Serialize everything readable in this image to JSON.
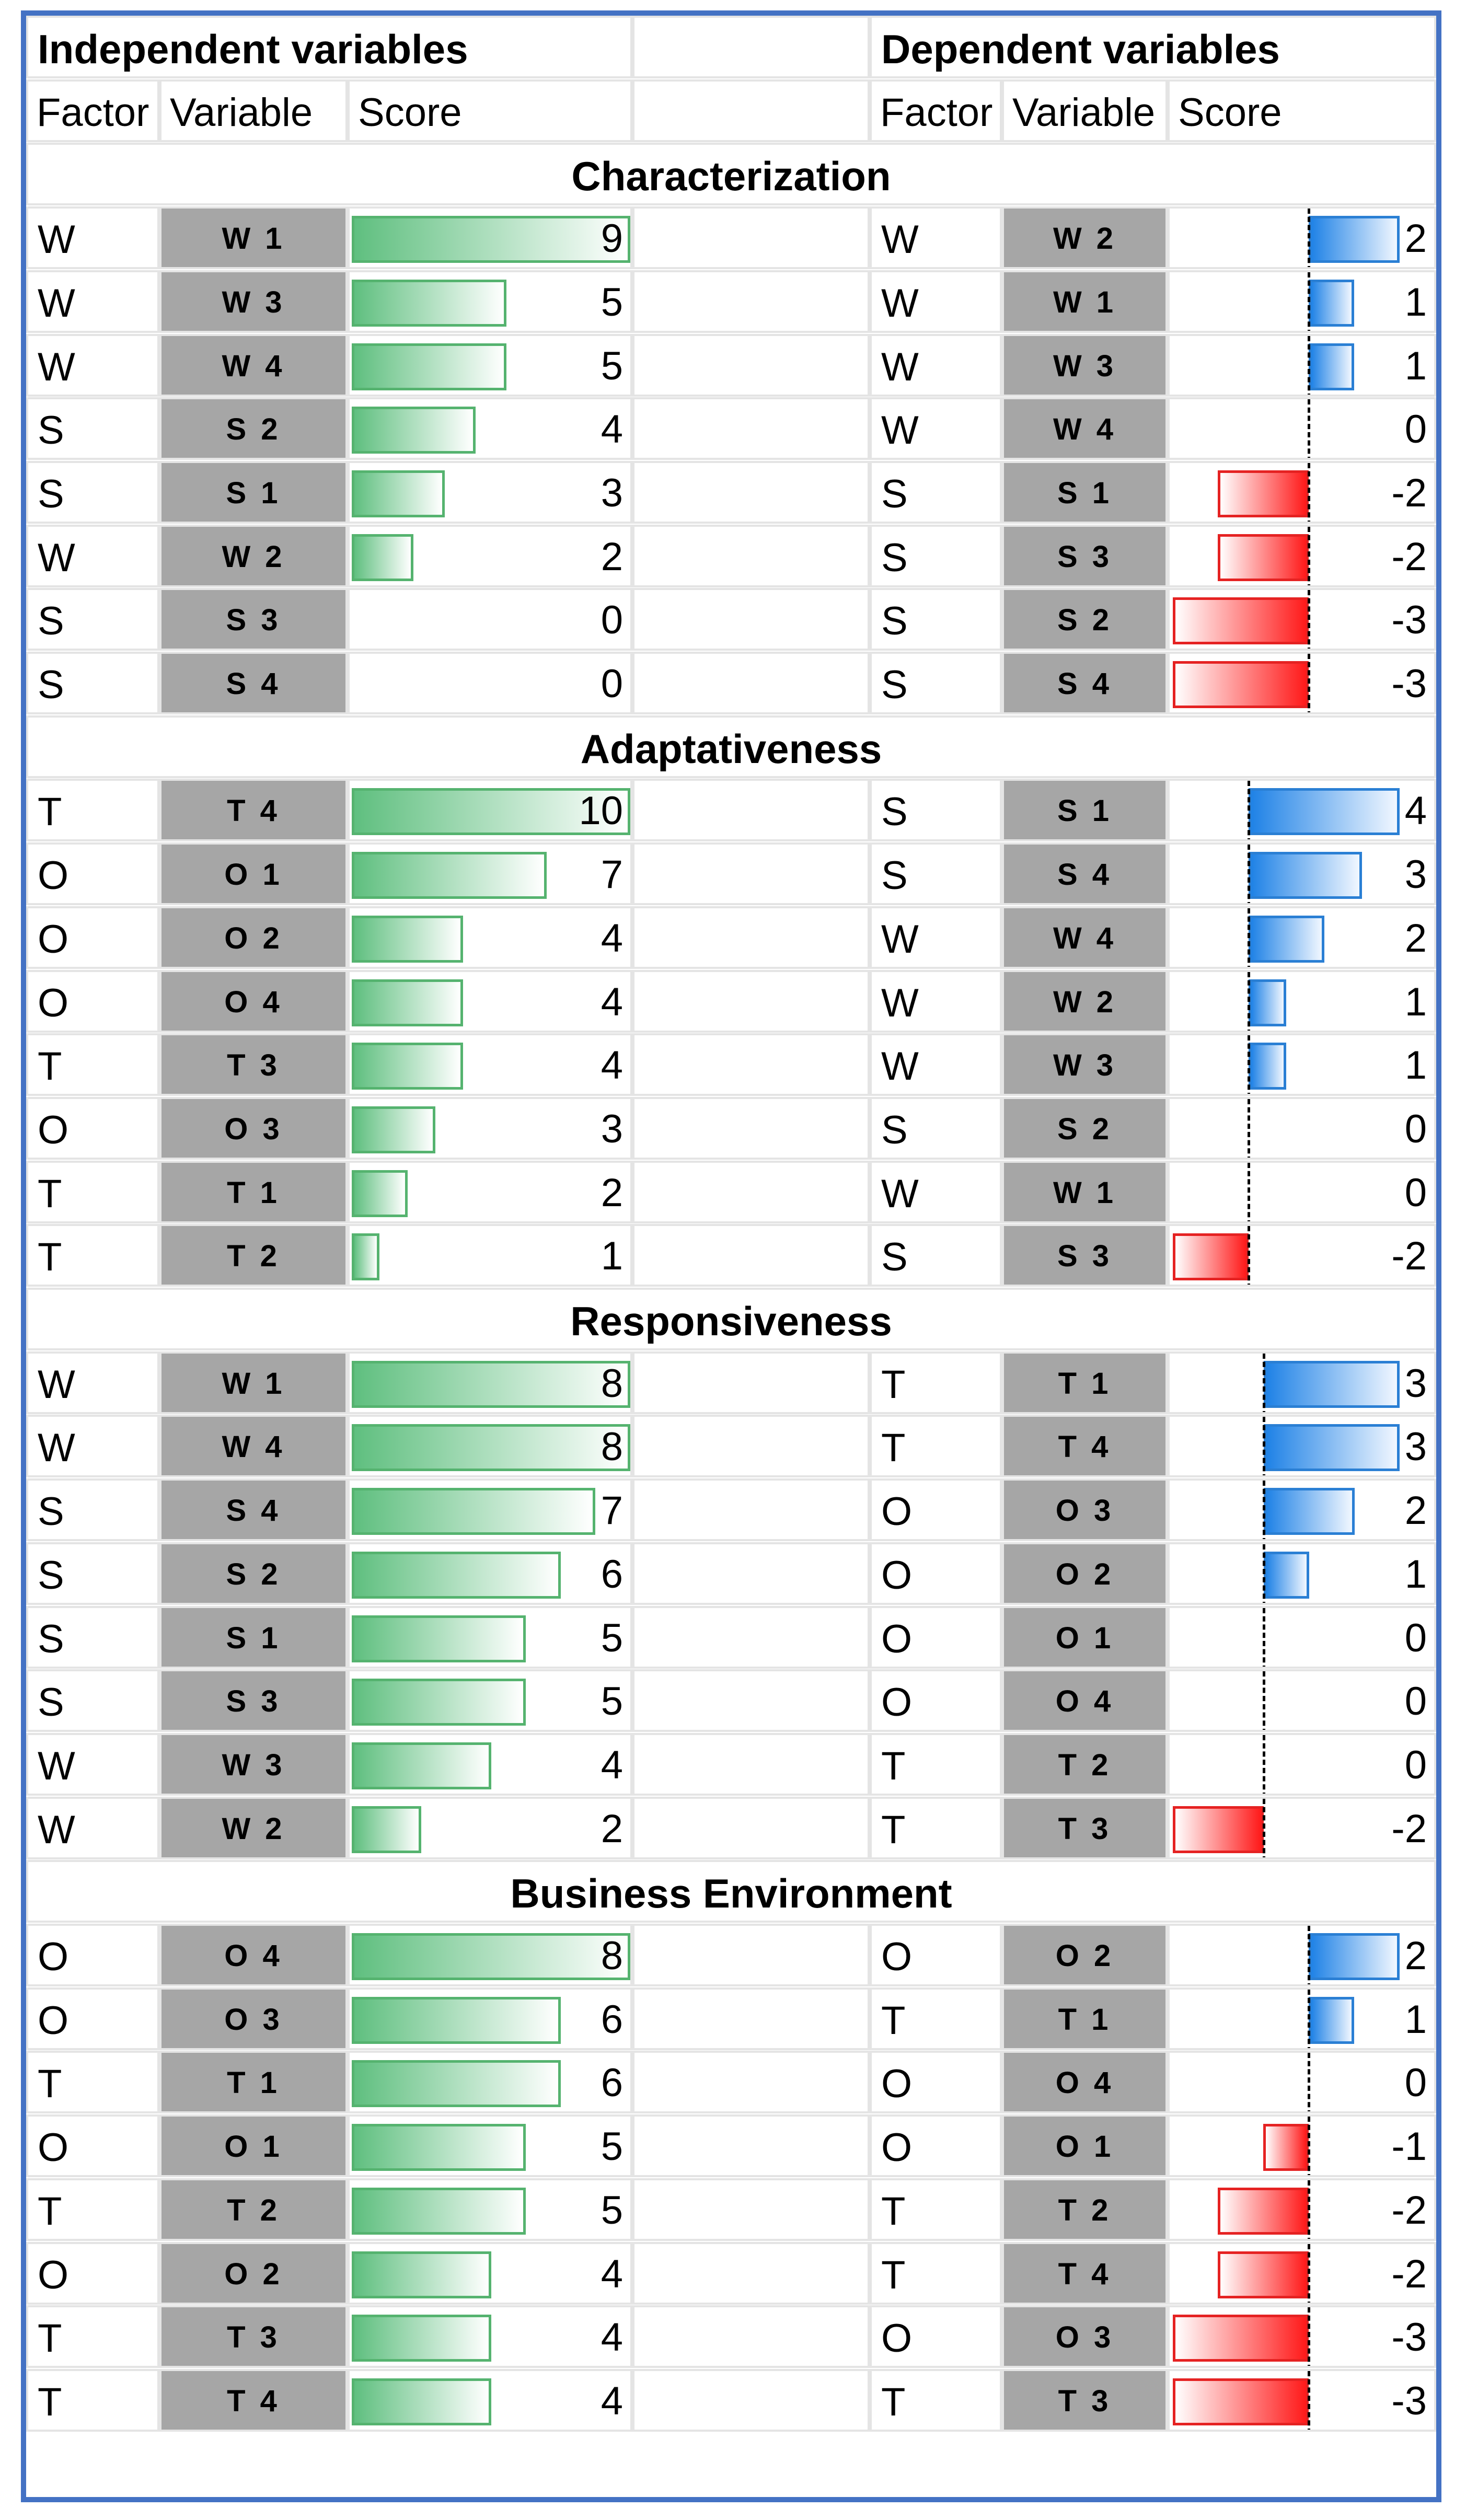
{
  "chart_data": {
    "type": "table",
    "headers": {
      "independent": "Independent variables",
      "dependent": "Dependent variables",
      "factor": "Factor",
      "variable": "Variable",
      "score": "Score"
    },
    "sections": [
      {
        "title": "Characterization",
        "independent": [
          {
            "factor": "W",
            "variable": "W 1",
            "score": 9
          },
          {
            "factor": "W",
            "variable": "W 3",
            "score": 5
          },
          {
            "factor": "W",
            "variable": "W 4",
            "score": 5
          },
          {
            "factor": "S",
            "variable": "S 2",
            "score": 4
          },
          {
            "factor": "S",
            "variable": "S 1",
            "score": 3
          },
          {
            "factor": "W",
            "variable": "W 2",
            "score": 2
          },
          {
            "factor": "S",
            "variable": "S 3",
            "score": 0
          },
          {
            "factor": "S",
            "variable": "S 4",
            "score": 0
          }
        ],
        "dependent": [
          {
            "factor": "W",
            "variable": "W 2",
            "score": 2
          },
          {
            "factor": "W",
            "variable": "W 1",
            "score": 1
          },
          {
            "factor": "W",
            "variable": "W 3",
            "score": 1
          },
          {
            "factor": "W",
            "variable": "W 4",
            "score": 0
          },
          {
            "factor": "S",
            "variable": "S 1",
            "score": -2
          },
          {
            "factor": "S",
            "variable": "S 3",
            "score": -2
          },
          {
            "factor": "S",
            "variable": "S 2",
            "score": -3
          },
          {
            "factor": "S",
            "variable": "S 4",
            "score": -3
          }
        ]
      },
      {
        "title": "Adaptativeness",
        "independent": [
          {
            "factor": "T",
            "variable": "T 4",
            "score": 10
          },
          {
            "factor": "O",
            "variable": "O 1",
            "score": 7
          },
          {
            "factor": "O",
            "variable": "O 2",
            "score": 4
          },
          {
            "factor": "O",
            "variable": "O 4",
            "score": 4
          },
          {
            "factor": "T",
            "variable": "T 3",
            "score": 4
          },
          {
            "factor": "O",
            "variable": "O 3",
            "score": 3
          },
          {
            "factor": "T",
            "variable": "T 1",
            "score": 2
          },
          {
            "factor": "T",
            "variable": "T 2",
            "score": 1
          }
        ],
        "dependent": [
          {
            "factor": "S",
            "variable": "S 1",
            "score": 4
          },
          {
            "factor": "S",
            "variable": "S 4",
            "score": 3
          },
          {
            "factor": "W",
            "variable": "W 4",
            "score": 2
          },
          {
            "factor": "W",
            "variable": "W 2",
            "score": 1
          },
          {
            "factor": "W",
            "variable": "W 3",
            "score": 1
          },
          {
            "factor": "S",
            "variable": "S 2",
            "score": 0
          },
          {
            "factor": "W",
            "variable": "W 1",
            "score": 0
          },
          {
            "factor": "S",
            "variable": "S 3",
            "score": -2
          }
        ]
      },
      {
        "title": "Responsiveness",
        "independent": [
          {
            "factor": "W",
            "variable": "W 1",
            "score": 8
          },
          {
            "factor": "W",
            "variable": "W 4",
            "score": 8
          },
          {
            "factor": "S",
            "variable": "S 4",
            "score": 7
          },
          {
            "factor": "S",
            "variable": "S 2",
            "score": 6
          },
          {
            "factor": "S",
            "variable": "S 1",
            "score": 5
          },
          {
            "factor": "S",
            "variable": "S 3",
            "score": 5
          },
          {
            "factor": "W",
            "variable": "W 3",
            "score": 4
          },
          {
            "factor": "W",
            "variable": "W 2",
            "score": 2
          }
        ],
        "dependent": [
          {
            "factor": "T",
            "variable": "T 1",
            "score": 3
          },
          {
            "factor": "T",
            "variable": "T 4",
            "score": 3
          },
          {
            "factor": "O",
            "variable": "O 3",
            "score": 2
          },
          {
            "factor": "O",
            "variable": "O 2",
            "score": 1
          },
          {
            "factor": "O",
            "variable": "O 1",
            "score": 0
          },
          {
            "factor": "O",
            "variable": "O 4",
            "score": 0
          },
          {
            "factor": "T",
            "variable": "T 2",
            "score": 0
          },
          {
            "factor": "T",
            "variable": "T 3",
            "score": -2
          }
        ]
      },
      {
        "title": "Business Environment",
        "independent": [
          {
            "factor": "O",
            "variable": "O 4",
            "score": 8
          },
          {
            "factor": "O",
            "variable": "O 3",
            "score": 6
          },
          {
            "factor": "T",
            "variable": "T 1",
            "score": 6
          },
          {
            "factor": "O",
            "variable": "O 1",
            "score": 5
          },
          {
            "factor": "T",
            "variable": "T 2",
            "score": 5
          },
          {
            "factor": "O",
            "variable": "O 2",
            "score": 4
          },
          {
            "factor": "T",
            "variable": "T 3",
            "score": 4
          },
          {
            "factor": "T",
            "variable": "T 4",
            "score": 4
          }
        ],
        "dependent": [
          {
            "factor": "O",
            "variable": "O 2",
            "score": 2
          },
          {
            "factor": "T",
            "variable": "T 1",
            "score": 1
          },
          {
            "factor": "O",
            "variable": "O 4",
            "score": 0
          },
          {
            "factor": "O",
            "variable": "O 1",
            "score": -1
          },
          {
            "factor": "T",
            "variable": "T 2",
            "score": -2
          },
          {
            "factor": "T",
            "variable": "T 4",
            "score": -2
          },
          {
            "factor": "O",
            "variable": "O 3",
            "score": -3
          },
          {
            "factor": "T",
            "variable": "T 3",
            "score": -3
          }
        ]
      }
    ]
  },
  "colors": {
    "frame": "#4472c4",
    "variable_cell": "#a6a6a6",
    "independent_bar": "#5fbf7f",
    "dependent_positive_bar": "#1f82e6",
    "dependent_negative_bar": "#ff1a1a"
  }
}
